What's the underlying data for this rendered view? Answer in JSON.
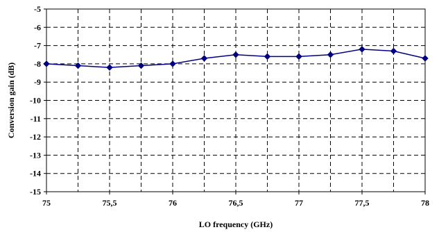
{
  "chart_data": {
    "type": "line",
    "title": "",
    "xlabel": "LO frequency (GHz)",
    "ylabel": "Conversion gain (dB)",
    "xlim": [
      75,
      78
    ],
    "ylim": [
      -15,
      -5
    ],
    "x_ticks": [
      75,
      75.5,
      76,
      76.5,
      77,
      77.5,
      78
    ],
    "x_tick_labels": [
      "75",
      "75,5",
      "76",
      "76,5",
      "77",
      "77,5",
      "78"
    ],
    "y_ticks": [
      -5,
      -6,
      -7,
      -8,
      -9,
      -10,
      -11,
      -12,
      -13,
      -14,
      -15
    ],
    "y_tick_labels": [
      "-5",
      "-6",
      "-7",
      "-8",
      "-9",
      "-10",
      "-11",
      "-12",
      "-13",
      "-14",
      "-15"
    ],
    "x_minor_gridlines_every": 0.25,
    "grid": true,
    "grid_style": "dashed",
    "series": [
      {
        "color": "#000080",
        "marker": "diamond",
        "x": [
          75,
          75.25,
          75.5,
          75.75,
          76,
          76.25,
          76.5,
          76.75,
          77,
          77.25,
          77.5,
          77.75,
          78
        ],
        "y": [
          -8.0,
          -8.1,
          -8.2,
          -8.1,
          -8.0,
          -7.7,
          -7.5,
          -7.6,
          -7.6,
          -7.5,
          -7.2,
          -7.3,
          -7.7
        ]
      }
    ]
  }
}
